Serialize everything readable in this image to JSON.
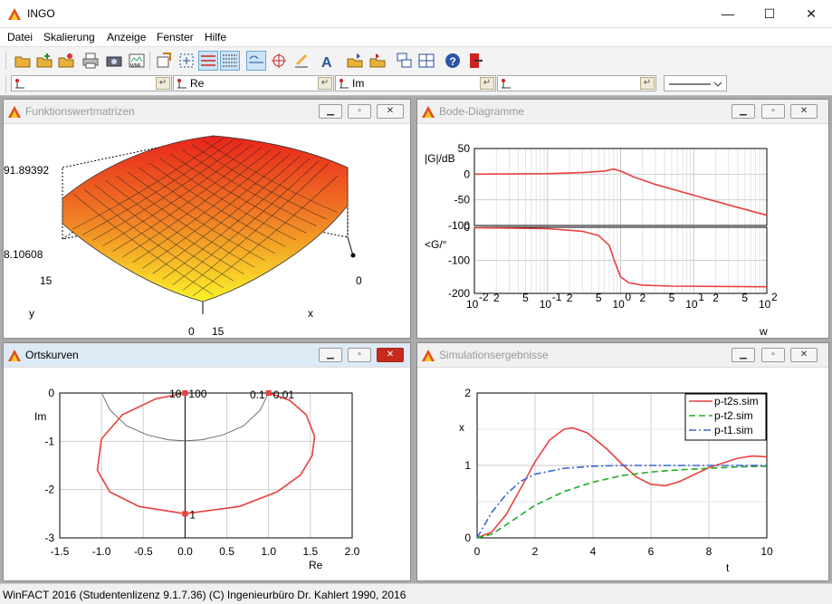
{
  "window": {
    "title": "INGO",
    "minimize": "—",
    "maximize": "☐",
    "close": "✕"
  },
  "menu": [
    "Datei",
    "Skalierung",
    "Anzeige",
    "Fenster",
    "Hilfe"
  ],
  "fields": [
    {
      "name": "field-1",
      "value": ""
    },
    {
      "name": "field-re",
      "value": "Re"
    },
    {
      "name": "field-im",
      "value": "Im"
    },
    {
      "name": "field-4",
      "value": ""
    }
  ],
  "windows": {
    "matrices": {
      "title": "Funktionswertmatrizen",
      "labels": {
        "zmax": "91.89392",
        "zmin": "8.10608",
        "y15": "15",
        "y": "y",
        "x0": "0",
        "x": "x",
        "b0": "0",
        "b15": "15"
      }
    },
    "bode": {
      "title": "Bode-Diagramme",
      "ylabel_mag": "|G|/dB",
      "ylabel_phase": "<G/°",
      "xlabel": "w"
    },
    "nyquist": {
      "title": "Ortskurven",
      "xlabel": "Re",
      "ylabel": "Im",
      "markers": [
        {
          "label": "10",
          "re": 0.0,
          "im": 0.0
        },
        {
          "label": "100",
          "re": 0.0,
          "im": 0.0
        },
        {
          "label": "0.1",
          "re": 1.0,
          "im": 0.0
        },
        {
          "label": "0.01",
          "re": 1.0,
          "im": 0.0
        },
        {
          "label": "1",
          "re": 0.0,
          "im": -2.5
        }
      ]
    },
    "sim": {
      "title": "Simulationsergebnisse",
      "xlabel": "t",
      "ylabel": "x"
    }
  },
  "chart_data": [
    {
      "type": "line",
      "title": "",
      "xlabel": "w",
      "ylabel": "|G|/dB",
      "xscale": "log",
      "xlim": [
        0.01,
        100
      ],
      "ylim": [
        -100,
        50
      ],
      "yticks": [
        50,
        0,
        -50,
        -100
      ],
      "xtick_labels": [
        "10-2",
        "2",
        "5",
        "10-1",
        "2",
        "5",
        "100",
        "2",
        "5",
        "101",
        "2",
        "5",
        "102"
      ],
      "grid": true,
      "series": [
        {
          "color": "#e8413c",
          "x": [
            0.01,
            0.1,
            0.3,
            0.6,
            0.8,
            1.0,
            1.5,
            3,
            10,
            30,
            100
          ],
          "y": [
            0,
            1,
            3,
            6,
            10,
            6,
            -5,
            -20,
            -41,
            -60,
            -80
          ]
        }
      ]
    },
    {
      "type": "line",
      "title": "",
      "xlabel": "w",
      "ylabel": "<G/°",
      "xscale": "log",
      "xlim": [
        0.01,
        100
      ],
      "ylim": [
        -200,
        0
      ],
      "yticks": [
        0,
        -100,
        -200
      ],
      "grid": true,
      "series": [
        {
          "color": "#e8413c",
          "x": [
            0.01,
            0.1,
            0.3,
            0.5,
            0.7,
            0.85,
            1.0,
            1.3,
            2,
            5,
            20,
            100
          ],
          "y": [
            -1,
            -4,
            -12,
            -25,
            -55,
            -110,
            -150,
            -168,
            -175,
            -178,
            -179,
            -180
          ]
        }
      ]
    },
    {
      "type": "line",
      "title": "",
      "xlabel": "Re",
      "ylabel": "Im",
      "xlim": [
        -1.5,
        2.0
      ],
      "ylim": [
        -3,
        0
      ],
      "xticks": [
        -1.5,
        -1.0,
        -0.5,
        0.0,
        0.5,
        1.0,
        1.5,
        2.0
      ],
      "yticks": [
        0,
        -1,
        -2,
        -3
      ],
      "grid": true,
      "series": [
        {
          "color": "#555555",
          "x": [
            -0.99,
            -0.9,
            -0.7,
            -0.45,
            -0.2,
            0.0,
            0.2,
            0.45,
            0.7,
            0.9,
            0.99
          ],
          "y": [
            -0.03,
            -0.35,
            -0.68,
            -0.87,
            -0.97,
            -0.99,
            -0.97,
            -0.87,
            -0.68,
            -0.35,
            -0.03
          ]
        },
        {
          "color": "#e8413c",
          "x": [
            1.0,
            1.25,
            1.45,
            1.55,
            1.52,
            1.38,
            1.1,
            0.65,
            0.0,
            -0.55,
            -0.9,
            -1.05,
            -1.0,
            -0.75,
            -0.35,
            0.0
          ],
          "y": [
            0.0,
            -0.15,
            -0.45,
            -0.9,
            -1.3,
            -1.7,
            -2.05,
            -2.35,
            -2.5,
            -2.35,
            -2.05,
            -1.6,
            -0.95,
            -0.45,
            -0.12,
            0.0
          ]
        }
      ]
    },
    {
      "type": "line",
      "title": "",
      "xlabel": "t",
      "ylabel": "x",
      "xlim": [
        0,
        10
      ],
      "ylim": [
        0,
        2
      ],
      "xticks": [
        0,
        2,
        4,
        6,
        8,
        10
      ],
      "yticks": [
        0,
        1,
        2
      ],
      "grid": true,
      "legend": "top-right",
      "series": [
        {
          "name": "p-t2s.sim",
          "color": "#e8413c",
          "dash": "solid",
          "x": [
            0,
            0.5,
            1,
            1.5,
            2,
            2.5,
            3,
            3.3,
            3.8,
            4.5,
            5,
            5.5,
            6,
            6.5,
            7,
            8,
            9,
            9.5,
            10
          ],
          "y": [
            0,
            0.08,
            0.32,
            0.68,
            1.05,
            1.35,
            1.5,
            1.52,
            1.45,
            1.22,
            1.02,
            0.84,
            0.74,
            0.72,
            0.78,
            0.97,
            1.1,
            1.13,
            1.12
          ]
        },
        {
          "name": "p-t2.sim",
          "color": "#22aa22",
          "dash": "dashed",
          "x": [
            0,
            0.5,
            1,
            2,
            3,
            4,
            5,
            6,
            7,
            8,
            9,
            10
          ],
          "y": [
            0,
            0.05,
            0.18,
            0.45,
            0.64,
            0.77,
            0.86,
            0.91,
            0.94,
            0.96,
            0.98,
            0.99
          ]
        },
        {
          "name": "p-t1.sim",
          "color": "#3a66d8",
          "dash": "dashdot",
          "x": [
            0,
            0.5,
            1,
            1.5,
            2,
            3,
            4,
            5,
            6,
            8,
            10
          ],
          "y": [
            0,
            0.35,
            0.6,
            0.78,
            0.88,
            0.96,
            0.99,
            1.0,
            1.0,
            1.0,
            1.0
          ]
        }
      ]
    }
  ],
  "status": "WinFACT 2016 (Studentenlizenz 9.1.7.36)  (C) Ingenieurbüro Dr. Kahlert 1990, 2016"
}
